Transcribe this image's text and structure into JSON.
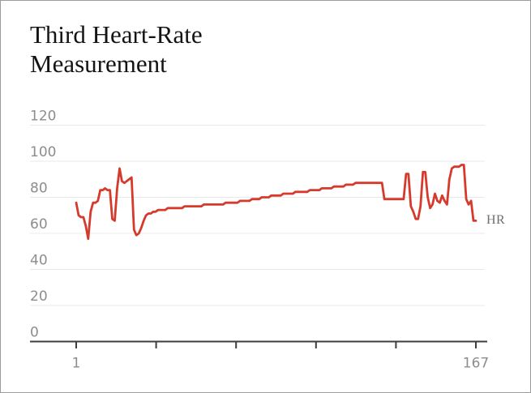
{
  "title": "Third Heart-Rate Measurement",
  "colors": {
    "background": "#ffffff",
    "frame_border": "#9c9c9c",
    "line": "#d63a2c",
    "gridline": "#e8e8e8",
    "axis": "#3d3d3d",
    "tick_label": "#8d8d8d",
    "series_label": "#6f6f6f",
    "title_text": "#141414"
  },
  "chart_data": {
    "type": "line",
    "title": "Third Heart-Rate Measurement",
    "series_label": "HR",
    "xlabel": "",
    "ylabel": "",
    "x_range": [
      1,
      167
    ],
    "x_tick_labels": [
      "1",
      "167"
    ],
    "num_x_ticks": 6,
    "y_ticks": [
      0,
      20,
      40,
      60,
      80,
      100,
      120
    ],
    "ylim": [
      0,
      120
    ],
    "grid": "horizontal",
    "legend_position": "right-of-line-end",
    "values": [
      77,
      70,
      69,
      69,
      64,
      57,
      72,
      77,
      77,
      78,
      84,
      84,
      85,
      84,
      84,
      68,
      67,
      85,
      96,
      89,
      88,
      89,
      90,
      91,
      62,
      59,
      60,
      63,
      67,
      70,
      71,
      71,
      72,
      72,
      73,
      73,
      73,
      73,
      74,
      74,
      74,
      74,
      74,
      74,
      74,
      75,
      75,
      75,
      75,
      75,
      75,
      75,
      75,
      76,
      76,
      76,
      76,
      76,
      76,
      76,
      76,
      76,
      77,
      77,
      77,
      77,
      77,
      77,
      78,
      78,
      78,
      78,
      78,
      79,
      79,
      79,
      79,
      80,
      80,
      80,
      80,
      81,
      81,
      81,
      81,
      81,
      82,
      82,
      82,
      82,
      82,
      83,
      83,
      83,
      83,
      83,
      83,
      84,
      84,
      84,
      84,
      84,
      85,
      85,
      85,
      85,
      85,
      86,
      86,
      86,
      86,
      86,
      87,
      87,
      87,
      87,
      88,
      88,
      88,
      88,
      88,
      88,
      88,
      88,
      88,
      88,
      88,
      88,
      79,
      79,
      79,
      79,
      79,
      79,
      79,
      79,
      79,
      93,
      93,
      75,
      72,
      68,
      68,
      75,
      94,
      94,
      80,
      74,
      76,
      82,
      78,
      77,
      81,
      78,
      76,
      90,
      96,
      97,
      97,
      97,
      98,
      98,
      79,
      76,
      78,
      67,
      67
    ]
  }
}
